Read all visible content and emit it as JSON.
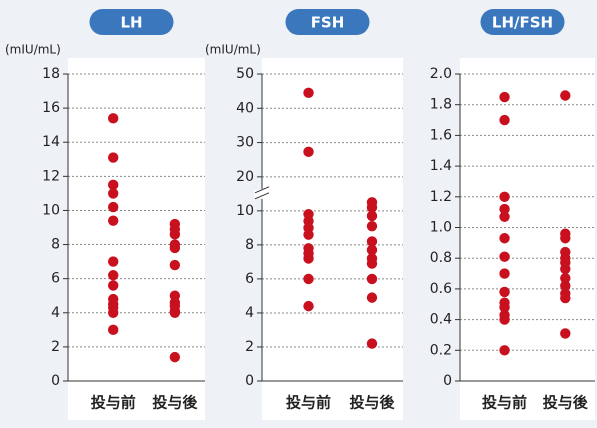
{
  "chart_data": [
    {
      "type": "strip",
      "title": "LH",
      "y_label": "(mIU/mL)",
      "categories": [
        "投与前",
        "投与後"
      ],
      "color": "#c8101e",
      "grid": true,
      "ylim": [
        0,
        18
      ],
      "yticks": [
        0,
        2,
        4,
        6,
        8,
        10,
        12,
        14,
        16,
        18
      ],
      "values": [
        [
          15.4,
          13.1,
          11.5,
          11.0,
          10.2,
          9.4,
          7.0,
          6.2,
          5.6,
          4.8,
          4.5,
          4.3,
          4.0,
          3.0
        ],
        [
          9.2,
          8.9,
          8.6,
          8.0,
          7.8,
          6.8,
          5.0,
          4.6,
          4.4,
          4.1,
          4.0,
          1.4
        ]
      ]
    },
    {
      "type": "strip",
      "title": "FSH",
      "y_label": "(mIU/mL)",
      "categories": [
        "投与前",
        "投与後"
      ],
      "color": "#c8101e",
      "grid": true,
      "ylim": [
        0,
        50
      ],
      "axis_break": [
        10,
        20
      ],
      "yticks": [
        0,
        2,
        4,
        6,
        8,
        10,
        20,
        30,
        40,
        50
      ],
      "values": [
        [
          44.5,
          27.3,
          9.8,
          9.4,
          9.0,
          8.6,
          7.8,
          7.5,
          7.2,
          6.0,
          4.4
        ],
        [
          10.5,
          10.2,
          9.7,
          9.1,
          8.2,
          7.7,
          7.2,
          6.9,
          6.0,
          4.9,
          2.2
        ]
      ]
    },
    {
      "type": "strip",
      "title": "LH/FSH",
      "categories": [
        "投与前",
        "投与後"
      ],
      "color": "#c8101e",
      "grid": true,
      "ylim": [
        0,
        2.0
      ],
      "yticks": [
        0,
        0.2,
        0.4,
        0.6,
        0.8,
        {
          "value": 1.0,
          "label": "1.0"
        },
        1.2,
        1.4,
        1.6,
        1.8,
        {
          "value": 2.0,
          "label": "2.0"
        }
      ],
      "values": [
        [
          1.85,
          1.7,
          1.2,
          1.12,
          1.07,
          0.93,
          0.81,
          0.7,
          0.58,
          0.51,
          0.48,
          0.43,
          0.4,
          0.2
        ],
        [
          1.86,
          0.96,
          0.93,
          0.84,
          0.8,
          0.77,
          0.73,
          0.67,
          0.62,
          0.57,
          0.54,
          0.31
        ]
      ]
    }
  ]
}
